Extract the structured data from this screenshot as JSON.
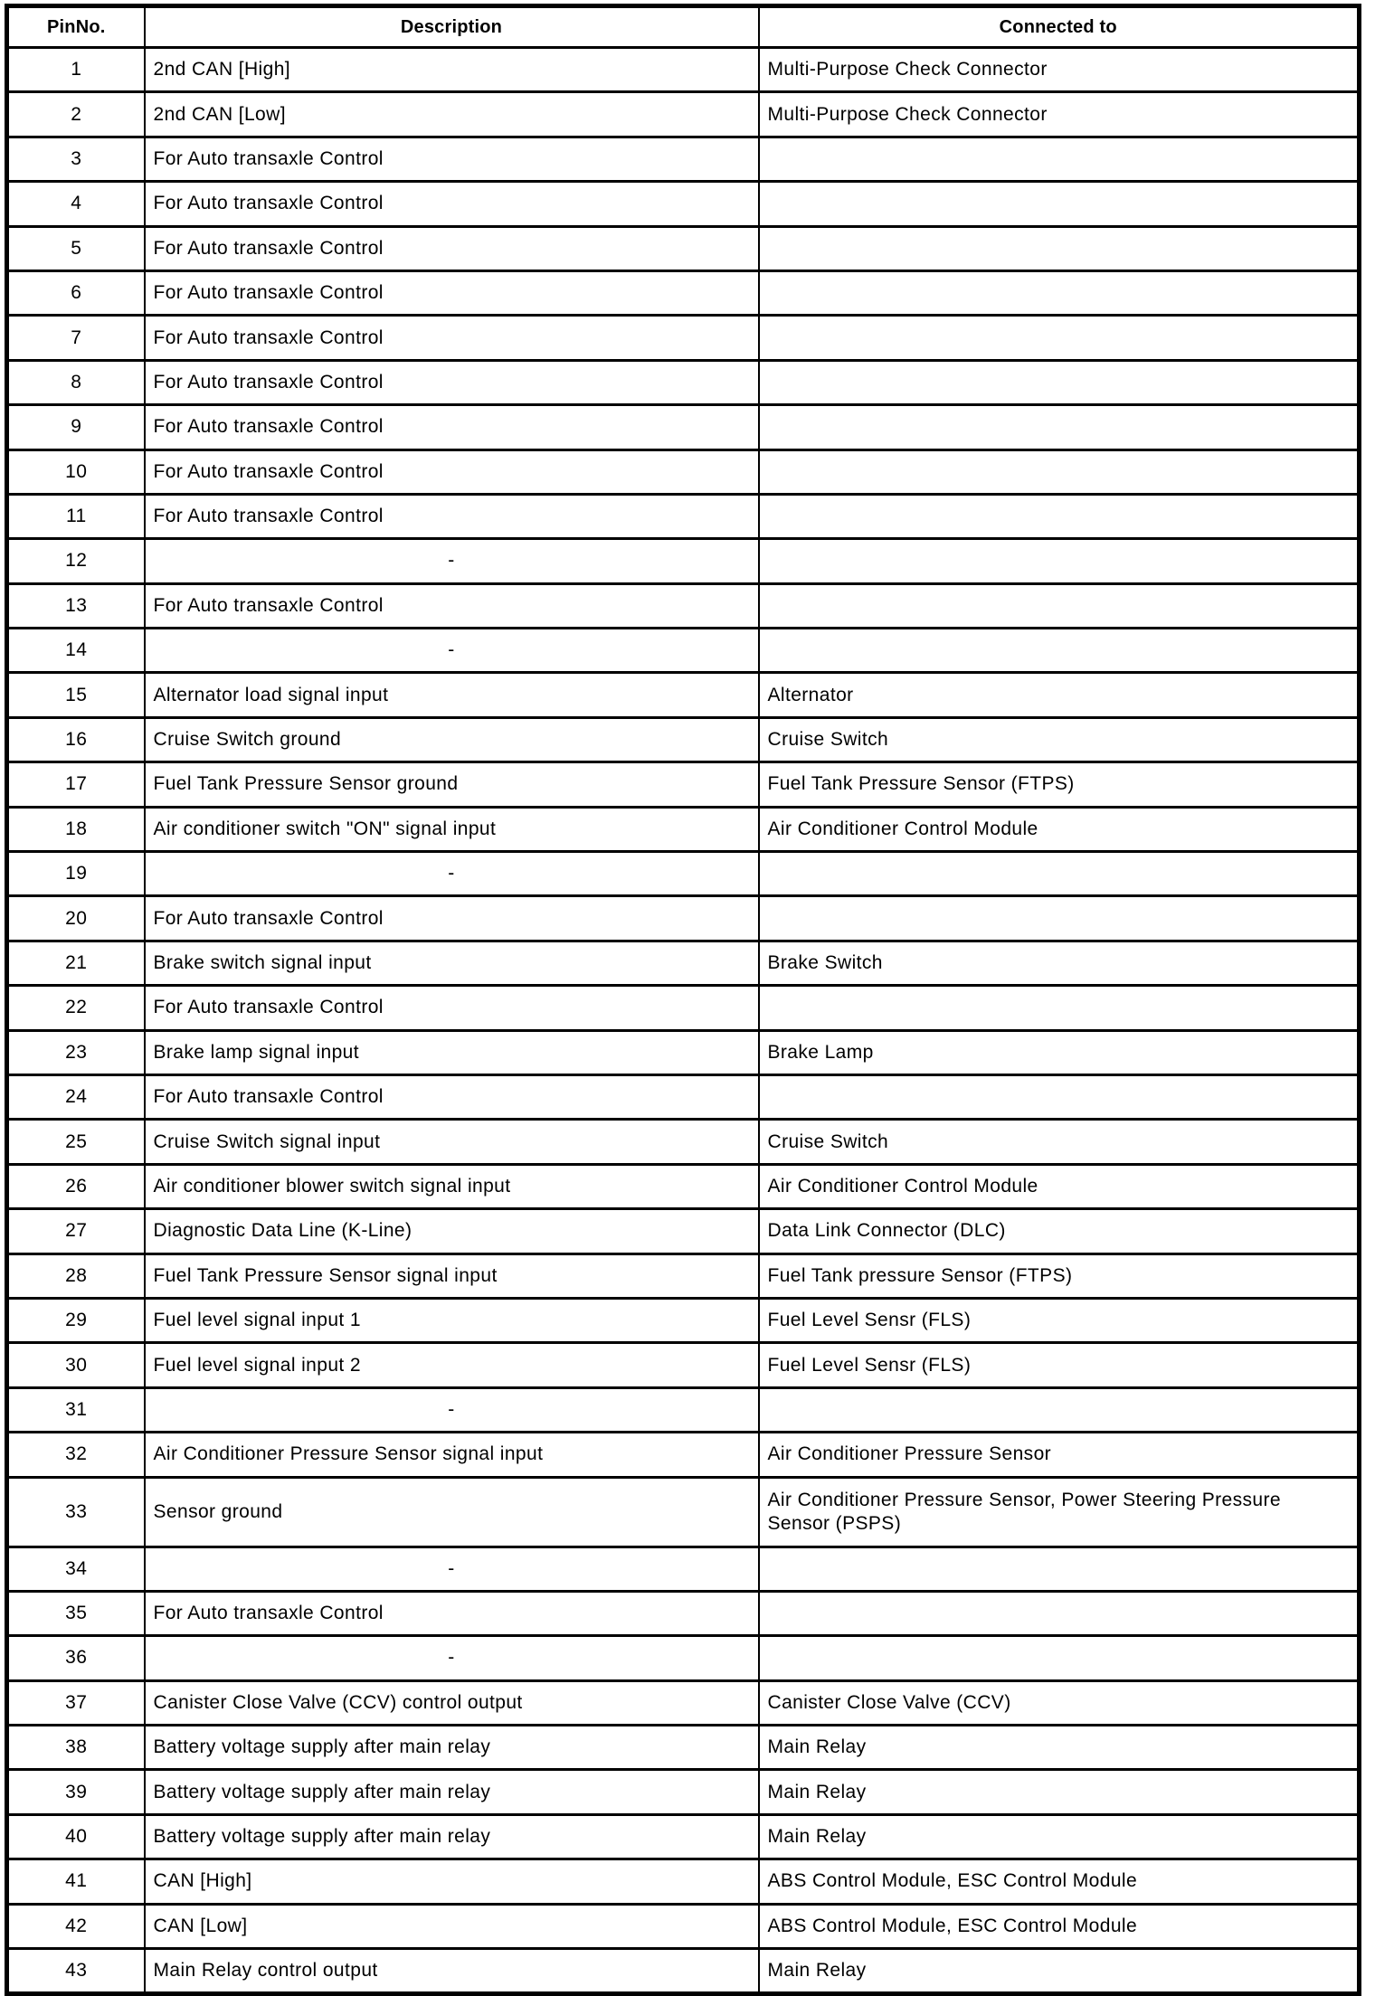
{
  "page": {
    "background_color": "#ffffff",
    "line_color": "#000000",
    "text_color": "#000000"
  },
  "table": {
    "empty_marker": "-",
    "headers": {
      "pin": "PinNo.",
      "description": "Description",
      "connected": "Connected to"
    },
    "rows": [
      {
        "pin": "1",
        "description": "2nd CAN [High]",
        "connected": "Multi-Purpose Check Connector"
      },
      {
        "pin": "2",
        "description": "2nd CAN [Low]",
        "connected": "Multi-Purpose Check Connector"
      },
      {
        "pin": "3",
        "description": "For Auto transaxle Control",
        "connected": ""
      },
      {
        "pin": "4",
        "description": "For Auto transaxle Control",
        "connected": ""
      },
      {
        "pin": "5",
        "description": "For Auto transaxle Control",
        "connected": ""
      },
      {
        "pin": "6",
        "description": "For Auto transaxle Control",
        "connected": ""
      },
      {
        "pin": "7",
        "description": "For Auto transaxle Control",
        "connected": ""
      },
      {
        "pin": "8",
        "description": "For Auto transaxle Control",
        "connected": ""
      },
      {
        "pin": "9",
        "description": "For Auto transaxle Control",
        "connected": ""
      },
      {
        "pin": "10",
        "description": "For Auto transaxle Control",
        "connected": ""
      },
      {
        "pin": "11",
        "description": "For Auto transaxle Control",
        "connected": ""
      },
      {
        "pin": "12",
        "description": "-",
        "connected": ""
      },
      {
        "pin": "13",
        "description": "For Auto transaxle Control",
        "connected": ""
      },
      {
        "pin": "14",
        "description": "-",
        "connected": ""
      },
      {
        "pin": "15",
        "description": "Alternator load signal input",
        "connected": "Alternator"
      },
      {
        "pin": "16",
        "description": "Cruise Switch ground",
        "connected": "Cruise Switch"
      },
      {
        "pin": "17",
        "description": "Fuel Tank Pressure Sensor ground",
        "connected": "Fuel Tank Pressure Sensor (FTPS)"
      },
      {
        "pin": "18",
        "description": "Air conditioner switch \"ON\" signal input",
        "connected": "Air Conditioner Control Module"
      },
      {
        "pin": "19",
        "description": "-",
        "connected": ""
      },
      {
        "pin": "20",
        "description": "For Auto transaxle Control",
        "connected": ""
      },
      {
        "pin": "21",
        "description": "Brake switch signal input",
        "connected": "Brake Switch"
      },
      {
        "pin": "22",
        "description": "For Auto transaxle Control",
        "connected": ""
      },
      {
        "pin": "23",
        "description": "Brake lamp signal input",
        "connected": "Brake Lamp"
      },
      {
        "pin": "24",
        "description": "For Auto transaxle Control",
        "connected": ""
      },
      {
        "pin": "25",
        "description": "Cruise Switch signal input",
        "connected": "Cruise Switch"
      },
      {
        "pin": "26",
        "description": "Air conditioner blower switch signal input",
        "connected": "Air Conditioner Control Module"
      },
      {
        "pin": "27",
        "description": "Diagnostic Data Line (K-Line)",
        "connected": "Data Link Connector (DLC)"
      },
      {
        "pin": "28",
        "description": "Fuel Tank Pressure Sensor signal input",
        "connected": "Fuel Tank pressure Sensor (FTPS)"
      },
      {
        "pin": "29",
        "description": "Fuel level signal input 1",
        "connected": "Fuel Level Sensr (FLS)"
      },
      {
        "pin": "30",
        "description": "Fuel level signal input 2",
        "connected": "Fuel Level Sensr (FLS)"
      },
      {
        "pin": "31",
        "description": "-",
        "connected": ""
      },
      {
        "pin": "32",
        "description": "Air Conditioner Pressure Sensor signal input",
        "connected": "Air Conditioner Pressure Sensor"
      },
      {
        "pin": "33",
        "description": "Sensor ground",
        "connected": "Air Conditioner Pressure Sensor, Power Steering Pressure\nSensor (PSPS)"
      },
      {
        "pin": "34",
        "description": "-",
        "connected": ""
      },
      {
        "pin": "35",
        "description": "For Auto transaxle Control",
        "connected": ""
      },
      {
        "pin": "36",
        "description": "-",
        "connected": ""
      },
      {
        "pin": "37",
        "description": "Canister Close Valve (CCV) control output",
        "connected": "Canister Close Valve (CCV)"
      },
      {
        "pin": "38",
        "description": "Battery voltage supply after main relay",
        "connected": "Main Relay"
      },
      {
        "pin": "39",
        "description": "Battery voltage supply after main relay",
        "connected": "Main Relay"
      },
      {
        "pin": "40",
        "description": "Battery voltage supply after main relay",
        "connected": "Main Relay"
      },
      {
        "pin": "41",
        "description": "CAN [High]",
        "connected": "ABS Control Module, ESC Control Module"
      },
      {
        "pin": "42",
        "description": "CAN [Low]",
        "connected": "ABS Control Module, ESC Control Module"
      },
      {
        "pin": "43",
        "description": "Main Relay control output",
        "connected": "Main Relay"
      }
    ]
  }
}
